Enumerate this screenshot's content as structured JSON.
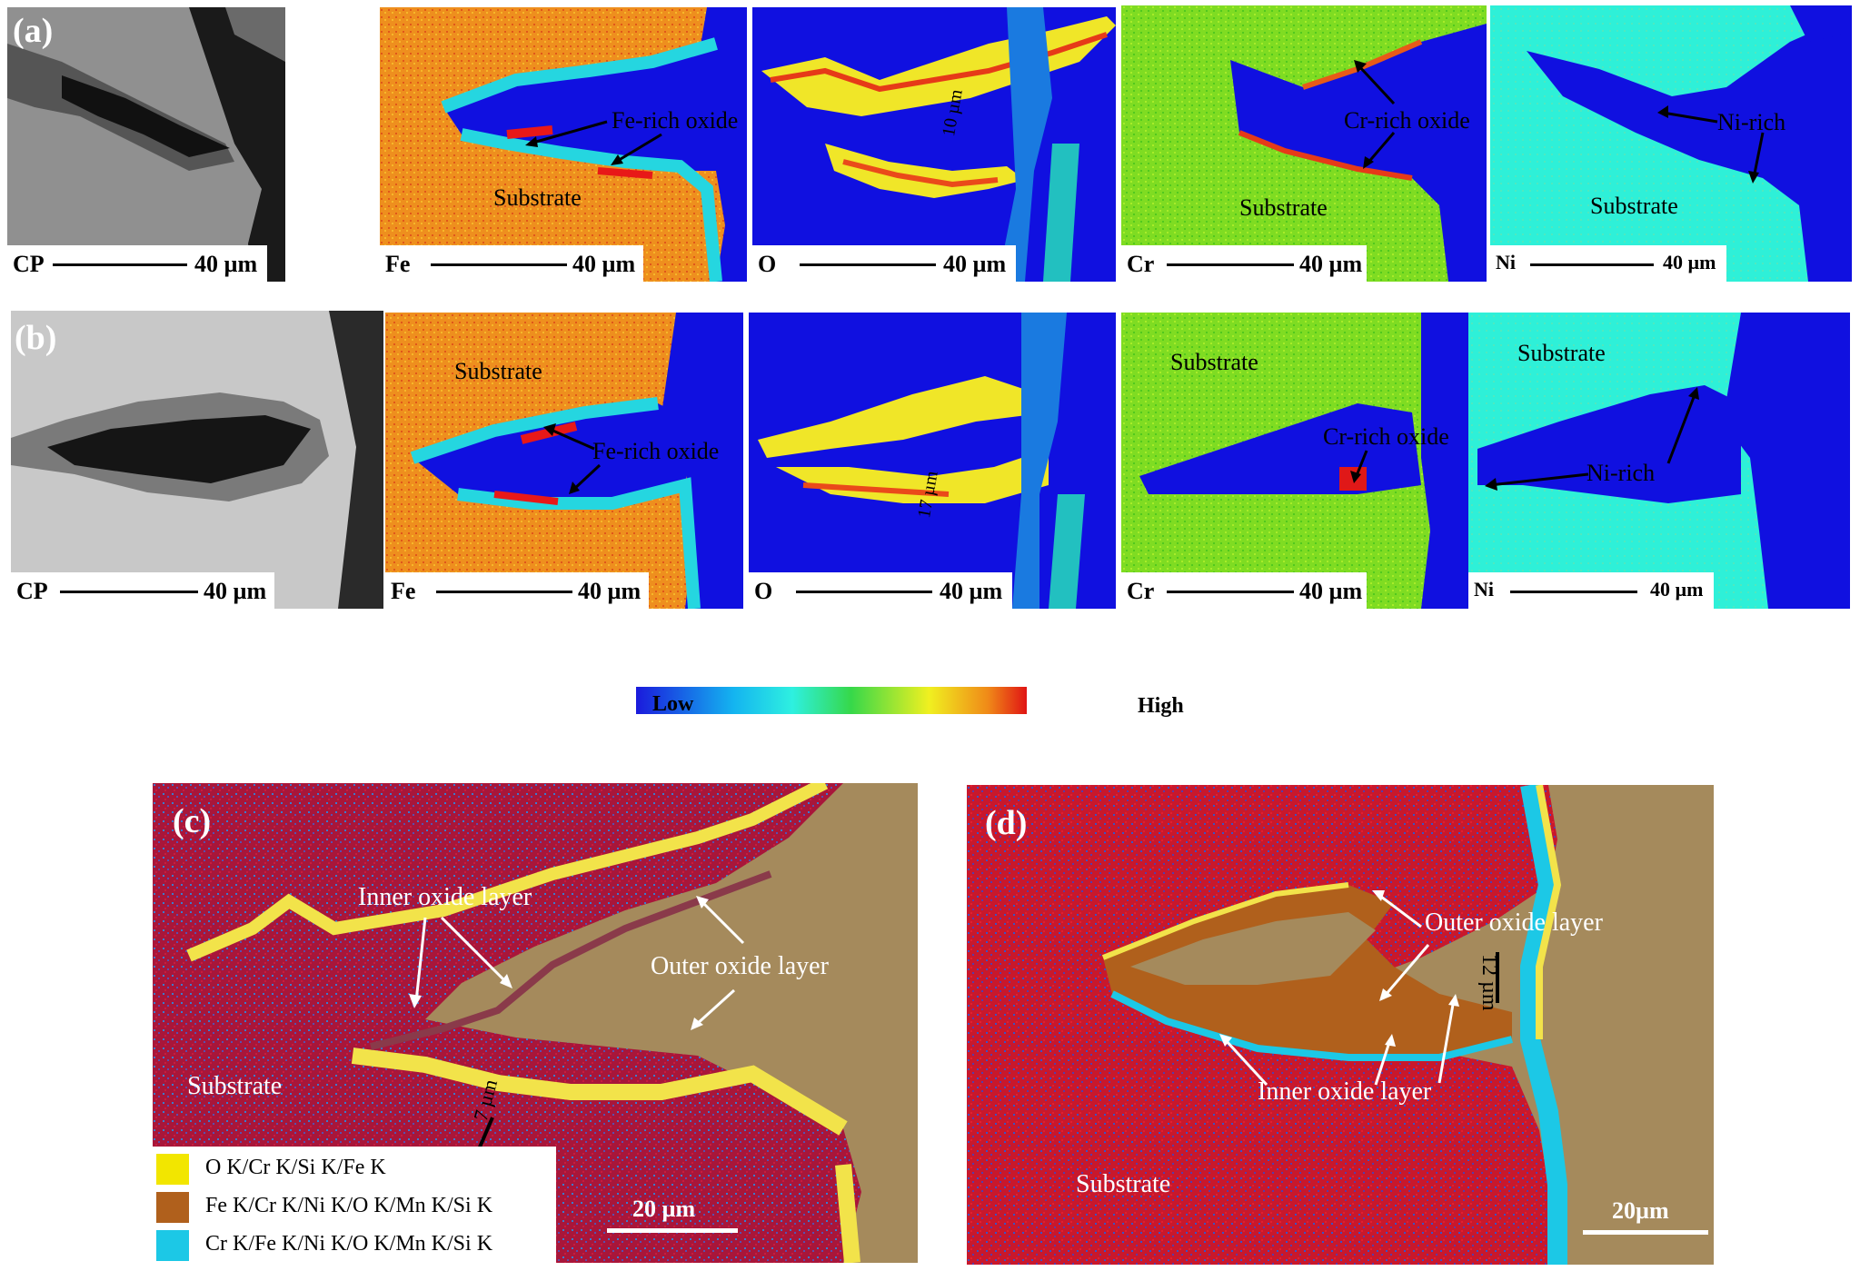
{
  "panel_letters": {
    "a": "(a)",
    "b": "(b)",
    "c": "(c)",
    "d": "(d)"
  },
  "row_a": {
    "maps": [
      {
        "element": "CP",
        "scale": "40 µm"
      },
      {
        "element": "Fe",
        "scale": "40 µm"
      },
      {
        "element": "O",
        "scale": "40 µm"
      },
      {
        "element": "Cr",
        "scale": "40 µm"
      },
      {
        "element": "Ni",
        "scale": "40 µm"
      }
    ],
    "annotations": {
      "fe_oxide": "Fe-rich oxide",
      "fe_substrate": "Substrate",
      "o_thickness": "10 µm",
      "cr_oxide": "Cr-rich oxide",
      "cr_substrate": "Substrate",
      "ni_rich": "Ni-rich",
      "ni_substrate": "Substrate"
    }
  },
  "row_b": {
    "maps": [
      {
        "element": "CP",
        "scale": "40 µm"
      },
      {
        "element": "Fe",
        "scale": "40 µm"
      },
      {
        "element": "O",
        "scale": "40 µm"
      },
      {
        "element": "Cr",
        "scale": "40 µm"
      },
      {
        "element": "Ni",
        "scale": "40 µm"
      }
    ],
    "annotations": {
      "fe_substrate": "Substrate",
      "fe_oxide": "Fe-rich oxide",
      "o_thickness": "17 µm",
      "cr_substrate": "Substrate",
      "cr_oxide": "Cr-rich oxide",
      "ni_substrate": "Substrate",
      "ni_rich": "Ni-rich"
    }
  },
  "colorbar": {
    "low": "Low",
    "high": "High"
  },
  "panel_c": {
    "inner": "Inner oxide layer",
    "outer": "Outer oxide layer",
    "substrate": "Substrate",
    "thickness": "7 µm",
    "scale": "20 µm",
    "legend": [
      {
        "label": "O K/Cr K/Si K/Fe K",
        "color": "#f2e600"
      },
      {
        "label": "Fe K/Cr K/Ni K/O K/Mn K/Si K",
        "color": "#b0601c"
      },
      {
        "label": "Cr K/Fe K/Ni K/O K/Mn K/Si K",
        "color": "#1cc8e6"
      }
    ]
  },
  "panel_d": {
    "outer": "Outer oxide layer",
    "inner": "Inner oxide layer",
    "substrate": "Substrate",
    "thickness": "12 µm",
    "scale": "20µm"
  }
}
